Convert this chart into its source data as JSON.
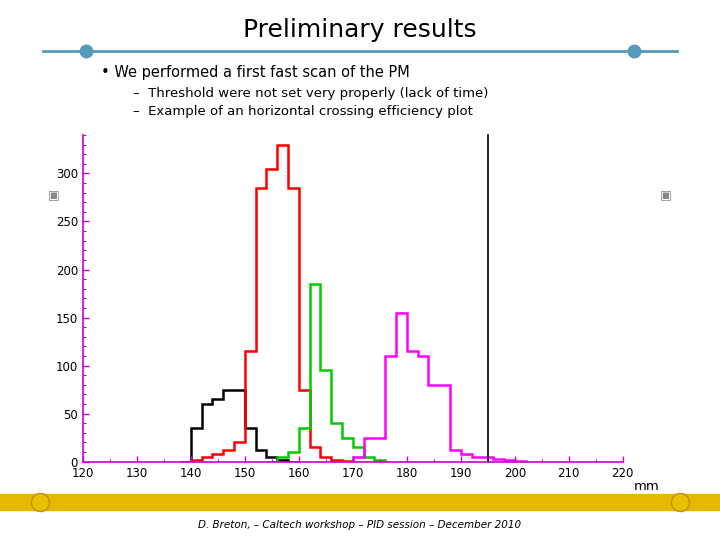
{
  "title": "Preliminary results",
  "subtitle_bullet": "We performed a first fast scan of the PM",
  "sub1": "Threshold were not set very properly (lack of time)",
  "sub2": "Example of an horizontal crossing efficiency plot",
  "footer": "D. Breton, – Caltech workshop – PID session – December 2010",
  "xlabel": "mm",
  "xlim": [
    120,
    220
  ],
  "ylim": [
    0,
    340
  ],
  "yticks": [
    0,
    50,
    100,
    150,
    200,
    250,
    300
  ],
  "xticks": [
    120,
    130,
    140,
    150,
    160,
    170,
    180,
    190,
    200,
    210,
    220
  ],
  "bg_color": "#ffffff",
  "axis_color": "#cc00cc",
  "vline_x": 195,
  "hist_black": {
    "color": "#000000",
    "bins": [
      138,
      140,
      142,
      144,
      146,
      148,
      150,
      152,
      154,
      156,
      158,
      160
    ],
    "values": [
      0,
      35,
      60,
      65,
      75,
      75,
      35,
      12,
      5,
      2,
      0
    ]
  },
  "hist_red": {
    "color": "#ff0000",
    "bins": [
      138,
      140,
      142,
      144,
      146,
      148,
      150,
      152,
      154,
      156,
      158,
      160,
      162,
      164,
      166,
      168,
      170
    ],
    "values": [
      0,
      2,
      5,
      8,
      12,
      20,
      115,
      285,
      305,
      330,
      285,
      75,
      15,
      5,
      2,
      1
    ]
  },
  "hist_green": {
    "color": "#00cc00",
    "bins": [
      154,
      156,
      158,
      160,
      162,
      164,
      166,
      168,
      170,
      172,
      174,
      176
    ],
    "values": [
      0,
      5,
      10,
      35,
      185,
      95,
      40,
      25,
      15,
      5,
      2
    ]
  },
  "hist_magenta": {
    "color": "#ff00ff",
    "bins": [
      168,
      170,
      172,
      174,
      176,
      178,
      180,
      182,
      184,
      186,
      188,
      190,
      192,
      194,
      196,
      198,
      200,
      202
    ],
    "values": [
      0,
      5,
      25,
      25,
      110,
      155,
      115,
      110,
      80,
      80,
      12,
      8,
      5,
      5,
      3,
      2,
      1
    ]
  }
}
